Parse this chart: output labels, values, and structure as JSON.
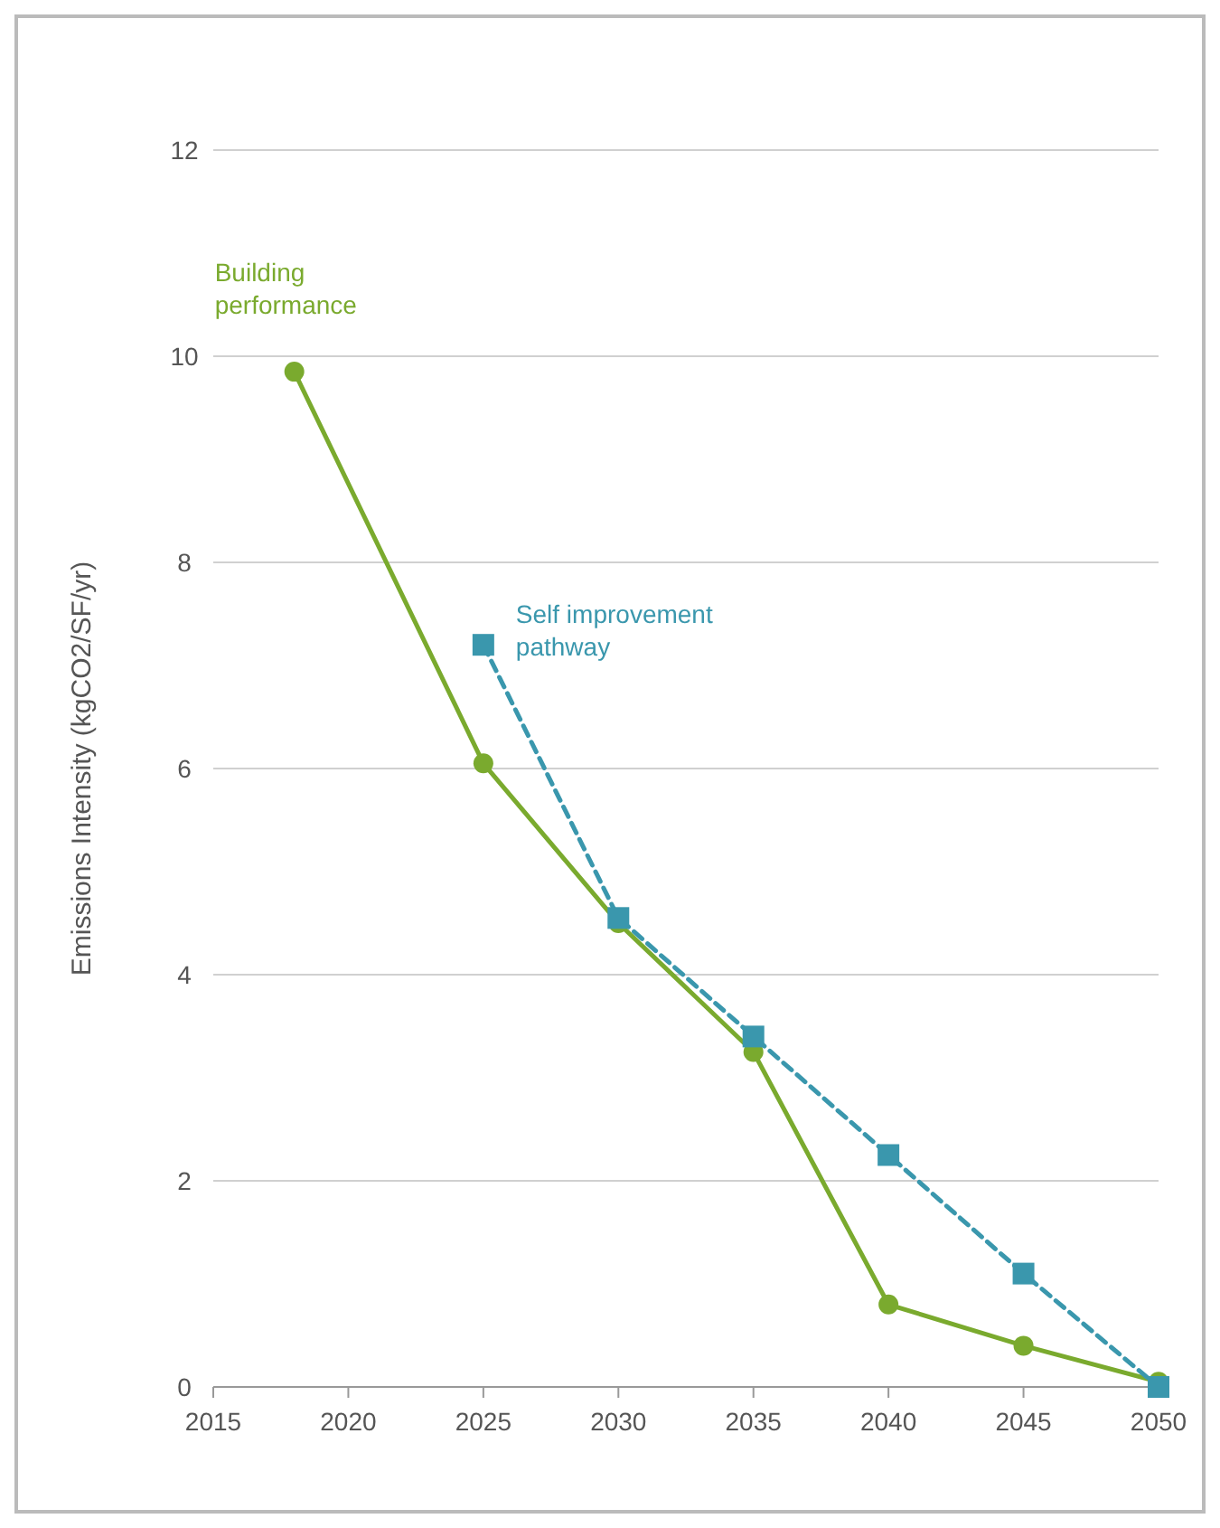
{
  "chart_data": {
    "type": "line",
    "ylabel": "Emissions Intensity (kgCO2/SF/yr)",
    "xlim": [
      2015,
      2050
    ],
    "xticks": [
      2015,
      2020,
      2025,
      2030,
      2035,
      2040,
      2045,
      2050
    ],
    "ylim": [
      0,
      12
    ],
    "yticks": [
      0,
      2,
      4,
      6,
      8,
      10,
      12
    ],
    "grid": "y",
    "series": [
      {
        "name": "Building performance",
        "color": "#7aaa2e",
        "marker": "circle",
        "line_style": "solid",
        "x": [
          2018,
          2025,
          2030,
          2035,
          2040,
          2045,
          2050
        ],
        "values": [
          9.85,
          6.05,
          4.5,
          3.25,
          0.8,
          0.4,
          0.05
        ]
      },
      {
        "name": "Self improvement pathway",
        "color": "#3a97ad",
        "marker": "square",
        "line_style": "dashed",
        "x": [
          2025,
          2030,
          2035,
          2040,
          2045,
          2050
        ],
        "values": [
          7.2,
          4.55,
          3.4,
          2.25,
          1.1,
          0.0
        ]
      }
    ]
  }
}
